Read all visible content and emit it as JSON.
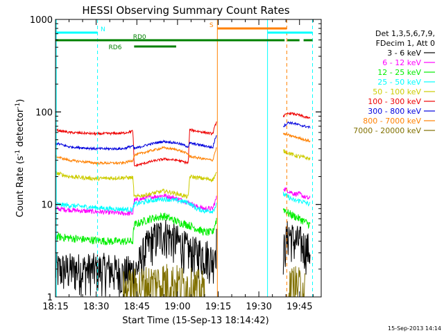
{
  "chart_data": {
    "type": "line",
    "title": "HESSI Observing Summary Count Rates",
    "xlabel": "Start Time (15-Sep-13 18:14:42)",
    "ylabel_main": "Count Rate (s",
    "ylabel_sup1": "-1",
    "ylabel_mid": " detector",
    "ylabel_sup2": "-1",
    "ylabel_end": ")",
    "yscale": "log",
    "ylim": [
      1,
      1000
    ],
    "xlim_minutes": [
      0,
      98
    ],
    "x_ticks": [
      {
        "t": 0,
        "label": "18:15"
      },
      {
        "t": 15,
        "label": "18:30"
      },
      {
        "t": 30,
        "label": "18:45"
      },
      {
        "t": 45,
        "label": "19:00"
      },
      {
        "t": 60,
        "label": "19:15"
      },
      {
        "t": 75,
        "label": "19:30"
      },
      {
        "t": 90,
        "label": "19:45"
      }
    ],
    "y_ticks": [
      {
        "v": 1,
        "label": "1"
      },
      {
        "v": 10,
        "label": "10"
      },
      {
        "v": 100,
        "label": "100"
      },
      {
        "v": 1000,
        "label": "1000"
      }
    ],
    "legend": {
      "placement": "right",
      "header": [
        "Det 1,3,5,6,7,9,",
        "FDecim 1, Att 0"
      ],
      "entries": [
        {
          "label": "3 - 6 keV",
          "color": "#000000"
        },
        {
          "label": "6 - 12 keV",
          "color": "#ff00ff"
        },
        {
          "label": "12 - 25 keV",
          "color": "#00ee00"
        },
        {
          "label": "25 - 50 keV",
          "color": "#00ffff"
        },
        {
          "label": "50 - 100 keV",
          "color": "#cccc00"
        },
        {
          "label": "100 - 300 keV",
          "color": "#ee0000"
        },
        {
          "label": "300 - 800 keV",
          "color": "#0000dd"
        },
        {
          "label": "800 - 7000 keV",
          "color": "#ff8000"
        },
        {
          "label": "7000 - 20000 keV",
          "color": "#807000"
        }
      ]
    },
    "series": [
      {
        "name": "3 - 6 keV",
        "color": "#000000",
        "noise": 0.5,
        "points": [
          [
            0,
            2
          ],
          [
            15,
            2
          ],
          [
            20,
            2
          ],
          [
            25,
            1.8
          ],
          [
            30,
            2
          ],
          [
            35,
            4
          ],
          [
            40,
            5
          ],
          [
            45,
            4
          ],
          [
            50,
            3
          ],
          [
            55,
            3
          ],
          [
            58,
            2.5
          ],
          [
            59.5,
            4
          ]
        ],
        "points2": [
          [
            84,
            3
          ],
          [
            86,
            5
          ],
          [
            88,
            4
          ],
          [
            90,
            4
          ],
          [
            92,
            3.5
          ],
          [
            94,
            3.2
          ]
        ]
      },
      {
        "name": "6 - 12 keV",
        "color": "#ff00ff",
        "noise": 0.06,
        "points": [
          [
            0,
            9
          ],
          [
            10,
            8.5
          ],
          [
            20,
            8.2
          ],
          [
            25,
            8
          ],
          [
            28.5,
            8
          ],
          [
            29,
            11
          ],
          [
            35,
            12
          ],
          [
            40,
            12.5
          ],
          [
            45,
            11.5
          ],
          [
            49,
            10.5
          ],
          [
            52,
            9.5
          ],
          [
            55,
            9
          ],
          [
            58,
            9
          ],
          [
            59.5,
            12
          ]
        ],
        "points2": [
          [
            84,
            15
          ],
          [
            86,
            14
          ],
          [
            88,
            13
          ],
          [
            90,
            13
          ],
          [
            92,
            12
          ],
          [
            94,
            11.5
          ]
        ]
      },
      {
        "name": "12 - 25 keV",
        "color": "#00ee00",
        "noise": 0.1,
        "points": [
          [
            0,
            4.5
          ],
          [
            10,
            4.2
          ],
          [
            20,
            4
          ],
          [
            28.5,
            4
          ],
          [
            29,
            6
          ],
          [
            35,
            7
          ],
          [
            40,
            7.5
          ],
          [
            45,
            6.5
          ],
          [
            49,
            6
          ],
          [
            52,
            5.5
          ],
          [
            55,
            5
          ],
          [
            58,
            5
          ],
          [
            59.5,
            7
          ]
        ],
        "points2": [
          [
            84,
            9
          ],
          [
            86,
            8
          ],
          [
            88,
            7.5
          ],
          [
            90,
            7
          ],
          [
            92,
            6.5
          ],
          [
            94,
            6
          ]
        ]
      },
      {
        "name": "25 - 50 keV",
        "color": "#00ffff",
        "noise": 0.06,
        "points": [
          [
            0,
            10
          ],
          [
            10,
            9.5
          ],
          [
            20,
            9
          ],
          [
            28.5,
            8.8
          ],
          [
            29,
            10
          ],
          [
            35,
            11
          ],
          [
            40,
            11.5
          ],
          [
            45,
            11
          ],
          [
            49,
            10.5
          ],
          [
            52,
            9
          ],
          [
            55,
            8.5
          ],
          [
            58,
            8.5
          ],
          [
            59.5,
            10
          ]
        ],
        "points2": [
          [
            84,
            13
          ],
          [
            86,
            12
          ],
          [
            88,
            11
          ],
          [
            90,
            11
          ],
          [
            92,
            10.5
          ],
          [
            94,
            10
          ]
        ]
      },
      {
        "name": "50 - 100 keV",
        "color": "#cccc00",
        "noise": 0.05,
        "points": [
          [
            0,
            22
          ],
          [
            5,
            20
          ],
          [
            15,
            19
          ],
          [
            25,
            19.5
          ],
          [
            28.5,
            19.5
          ],
          [
            29,
            12
          ],
          [
            35,
            13
          ],
          [
            40,
            14
          ],
          [
            45,
            13
          ],
          [
            49,
            12
          ],
          [
            49.5,
            20
          ],
          [
            55,
            19
          ],
          [
            58,
            18.5
          ],
          [
            59.5,
            22
          ]
        ],
        "points2": [
          [
            84,
            38
          ],
          [
            86,
            36
          ],
          [
            88,
            34
          ],
          [
            90,
            33
          ],
          [
            92,
            32
          ],
          [
            94,
            31
          ]
        ]
      },
      {
        "name": "100 - 300 keV",
        "color": "#ee0000",
        "noise": 0.03,
        "points": [
          [
            0,
            64
          ],
          [
            5,
            60
          ],
          [
            15,
            58
          ],
          [
            25,
            59
          ],
          [
            28.5,
            62
          ],
          [
            29,
            26
          ],
          [
            35,
            29
          ],
          [
            40,
            31
          ],
          [
            45,
            30
          ],
          [
            49,
            28
          ],
          [
            49.5,
            64
          ],
          [
            55,
            60
          ],
          [
            58,
            58
          ],
          [
            59.5,
            80
          ]
        ],
        "points2": [
          [
            84,
            90
          ],
          [
            86,
            97
          ],
          [
            88,
            95
          ],
          [
            90,
            92
          ],
          [
            92,
            88
          ],
          [
            94,
            85
          ]
        ]
      },
      {
        "name": "300 - 800 keV",
        "color": "#0000dd",
        "noise": 0.03,
        "points": [
          [
            0,
            46
          ],
          [
            5,
            42
          ],
          [
            15,
            40
          ],
          [
            25,
            40
          ],
          [
            28.5,
            43
          ],
          [
            29,
            40
          ],
          [
            35,
            45
          ],
          [
            40,
            48
          ],
          [
            45,
            46
          ],
          [
            49,
            42
          ],
          [
            49.5,
            46
          ],
          [
            55,
            43
          ],
          [
            58,
            41
          ],
          [
            59.5,
            58
          ]
        ],
        "points2": [
          [
            84,
            70
          ],
          [
            86,
            77
          ],
          [
            88,
            75
          ],
          [
            90,
            72
          ],
          [
            92,
            70
          ],
          [
            94,
            68
          ]
        ]
      },
      {
        "name": "800 - 7000 keV",
        "color": "#ff8000",
        "noise": 0.03,
        "points": [
          [
            0,
            33
          ],
          [
            5,
            30
          ],
          [
            15,
            28
          ],
          [
            25,
            28
          ],
          [
            28.5,
            30
          ],
          [
            29,
            34
          ],
          [
            35,
            38
          ],
          [
            40,
            41
          ],
          [
            45,
            39
          ],
          [
            49,
            35
          ],
          [
            49.5,
            33
          ],
          [
            55,
            31
          ],
          [
            58,
            30
          ],
          [
            59.5,
            42
          ]
        ],
        "points2": [
          [
            84,
            58
          ],
          [
            86,
            56
          ],
          [
            88,
            54
          ],
          [
            90,
            52
          ],
          [
            92,
            50
          ],
          [
            94,
            48
          ]
        ]
      },
      {
        "name": "7000 - 20000 keV",
        "color": "#807000",
        "noise": 0.6,
        "points": [
          [
            25,
            1.2
          ],
          [
            30,
            1.3
          ],
          [
            35,
            1.4
          ],
          [
            40,
            1.5
          ],
          [
            45,
            1.4
          ],
          [
            50,
            1.3
          ],
          [
            55,
            1.2
          ]
        ],
        "points2": [
          [
            86,
            1.2
          ],
          [
            88,
            1.4
          ],
          [
            90,
            1.3
          ],
          [
            92,
            1.3
          ]
        ]
      }
    ],
    "vertical_lines": [
      {
        "t": 0.3,
        "color": "#00ffff",
        "style": "solid"
      },
      {
        "t": 15.5,
        "color": "#00ffff",
        "style": "dashed"
      },
      {
        "t": 59.7,
        "color": "#ff8000",
        "style": "solid"
      },
      {
        "t": 78.2,
        "color": "#00ffff",
        "style": "solid"
      },
      {
        "t": 85.3,
        "color": "#ff8000",
        "style": "dashed"
      },
      {
        "t": 94.8,
        "color": "#00ffff",
        "style": "dashed"
      }
    ],
    "status_bars": [
      {
        "label": "N",
        "color": "#00ffff",
        "segments": [
          [
            0,
            15.5
          ],
          [
            78.2,
            94.8
          ]
        ],
        "level": 0,
        "label_at": 17.5
      },
      {
        "label": "S",
        "color": "#ff8000",
        "segments": [
          [
            59.7,
            85.3
          ]
        ],
        "level": 1,
        "label_at": 57.5
      },
      {
        "label": "RD0",
        "color": "#008000",
        "segments": [
          [
            0,
            84.5
          ],
          [
            85.5,
            90
          ],
          [
            91.5,
            94.8
          ]
        ],
        "level": 2,
        "label_at": 31
      },
      {
        "label": "RD6",
        "color": "#008000",
        "segments": [
          [
            29,
            44.5
          ]
        ],
        "level": 3,
        "label_at": 22
      }
    ]
  },
  "footer_timestamp": "15-Sep-2013 14:14"
}
